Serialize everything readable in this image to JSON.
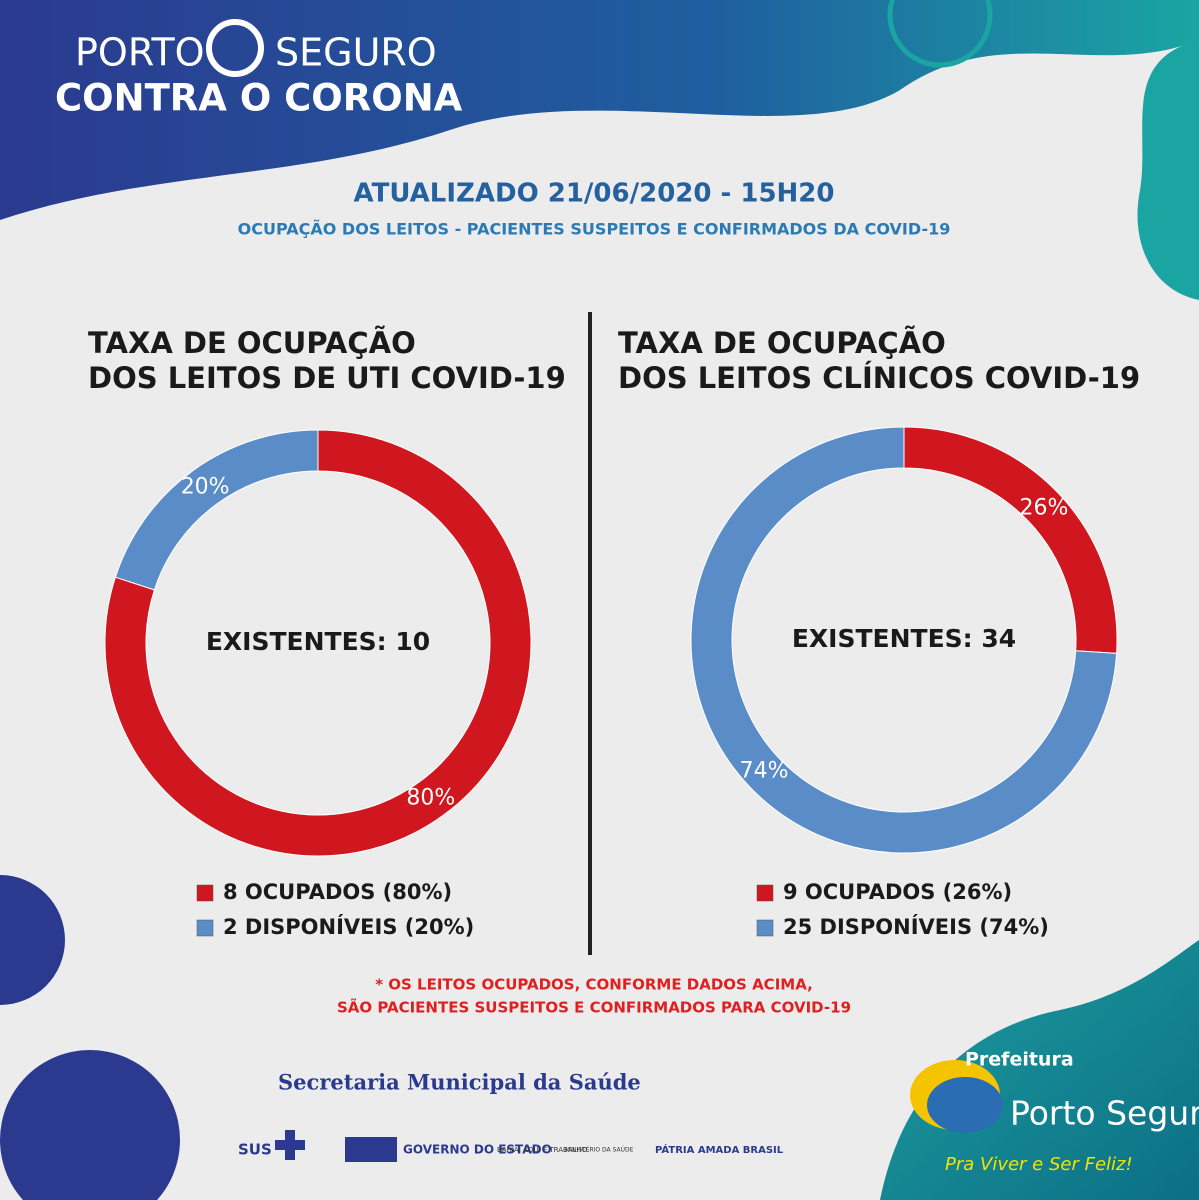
{
  "header": {
    "brand_left": "PORTO",
    "brand_right": "SEGURO",
    "campaign": "CONTRA O CORONA",
    "updated": "ATUALIZADO 21/06/2020 - 15H20",
    "subtitle": "OCUPAÇÃO DOS LEITOS - PACIENTES SUSPEITOS E CONFIRMADOS DA COVID-19"
  },
  "chart_data": [
    {
      "type": "donut",
      "title": [
        "TAXA DE OCUPAÇÃO",
        "DOS LEITOS DE UTI COVID-19"
      ],
      "center_label": "EXISTENTES: 10",
      "categories": [
        "8 OCUPADOS (80%)",
        "2 DISPONÍVEIS (20%)"
      ],
      "values": [
        80,
        20
      ],
      "value_labels": [
        "80%",
        "20%"
      ],
      "colors": [
        "#d0161e",
        "#5a8cc8"
      ]
    },
    {
      "type": "donut",
      "title": [
        "TAXA DE OCUPAÇÃO",
        "DOS LEITOS CLÍNICOS COVID-19"
      ],
      "center_label": "EXISTENTES: 34",
      "categories": [
        "9 OCUPADOS (26%)",
        "25 DISPONÍVEIS (74%)"
      ],
      "values": [
        26,
        74
      ],
      "value_labels": [
        "26%",
        "74%"
      ],
      "colors": [
        "#d0161e",
        "#5a8cc8"
      ]
    }
  ],
  "footnote": [
    "* OS LEITOS OCUPADOS, CONFORME DADOS ACIMA,",
    "SÃO PACIENTES SUSPEITOS E CONFIRMADOS PARA COVID-19"
  ],
  "footer": {
    "secretaria": "Secretaria Municipal da Saúde",
    "sus": "SUS",
    "governo": "GOVERNO DO ESTADO",
    "bahia": "BAHIA, AQUI É TRABALHO.",
    "ministerio": "MINISTÉRIO DA SAÚDE",
    "brasil": "PÁTRIA AMADA BRASIL",
    "prefeitura": "Prefeitura",
    "porto_seguro": "Porto Seguro",
    "slogan": "Pra Viver e Ser Feliz!"
  }
}
